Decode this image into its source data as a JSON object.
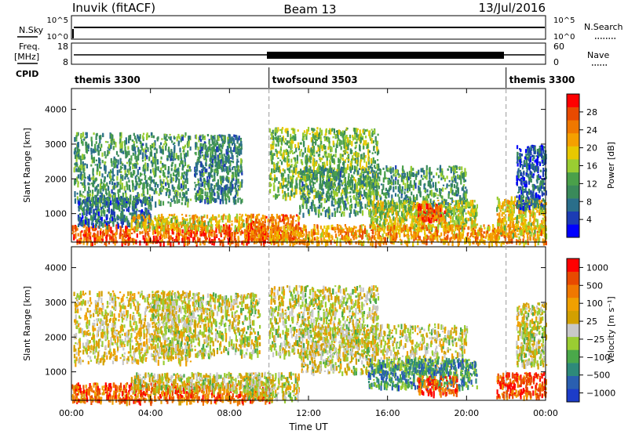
{
  "header": {
    "site": "Inuvik (fitACF)",
    "beam": "Beam 13",
    "date": "13/Jul/2016"
  },
  "strips": {
    "noise": {
      "left_label": "N.Sky",
      "left_ticks": [
        "10^5",
        "10^0"
      ],
      "right_label": "N.Search",
      "right_ticks": [
        "10^5",
        "10^0"
      ]
    },
    "freq": {
      "left_label": "Freq.",
      "left_unit": "[MHz]",
      "left_ticks": [
        "18",
        "8"
      ],
      "right_label": "Nave",
      "right_ticks": [
        "60",
        "0"
      ]
    },
    "cpid": {
      "label": "CPID",
      "programs": [
        {
          "name": "themis 3300",
          "start": 0,
          "end": 10
        },
        {
          "name": "twofsound 3503",
          "start": 10,
          "end": 22
        },
        {
          "name": "themis 3300",
          "start": 22,
          "end": 24
        }
      ]
    }
  },
  "chart_data": [
    {
      "type": "heatmap",
      "name": "power-panel",
      "xlabel": "",
      "ylabel": "Slant Range [km]",
      "xlim": [
        0,
        24
      ],
      "ylim": [
        180,
        4600
      ],
      "yticks": [
        "1000",
        "2000",
        "3000",
        "4000"
      ],
      "colorbar": {
        "label": "Power [dB]",
        "ticks": [
          "4",
          "8",
          "12",
          "16",
          "20",
          "24",
          "28"
        ],
        "colors": [
          "#0000ff",
          "#1c3cb4",
          "#2a6e8a",
          "#3a8a5a",
          "#4aa04a",
          "#9acd32",
          "#e8c800",
          "#f5a000",
          "#f07800",
          "#e84a00",
          "#ff0000"
        ]
      },
      "regions": [
        {
          "x": [
            0.0,
            10.0
          ],
          "y": [
            180,
            700
          ],
          "level": 0.82
        },
        {
          "x": [
            0.1,
            6.0
          ],
          "y": [
            1300,
            3350
          ],
          "level": 0.35
        },
        {
          "x": [
            6.2,
            8.6
          ],
          "y": [
            1400,
            3300
          ],
          "level": 0.3
        },
        {
          "x": [
            0.3,
            4.0
          ],
          "y": [
            700,
            1500
          ],
          "level": 0.25
        },
        {
          "x": [
            3.0,
            9.5
          ],
          "y": [
            600,
            1000
          ],
          "level": 0.6
        },
        {
          "x": [
            8.8,
            11.5
          ],
          "y": [
            250,
            1000
          ],
          "level": 0.8
        },
        {
          "x": [
            10.0,
            15.5
          ],
          "y": [
            1500,
            3500
          ],
          "level": 0.45
        },
        {
          "x": [
            11.5,
            20.0
          ],
          "y": [
            1000,
            2400
          ],
          "level": 0.35
        },
        {
          "x": [
            15.0,
            20.5
          ],
          "y": [
            600,
            1400
          ],
          "level": 0.55
        },
        {
          "x": [
            17.5,
            19.0
          ],
          "y": [
            800,
            1300
          ],
          "level": 0.85
        },
        {
          "x": [
            10.0,
            24.0
          ],
          "y": [
            180,
            700
          ],
          "level": 0.7
        },
        {
          "x": [
            21.5,
            24.0
          ],
          "y": [
            400,
            1500
          ],
          "level": 0.6
        },
        {
          "x": [
            22.5,
            24.0
          ],
          "y": [
            1200,
            3000
          ],
          "level": 0.2
        }
      ]
    },
    {
      "type": "heatmap",
      "name": "velocity-panel",
      "xlabel": "Time UT",
      "ylabel": "Slant Range [km]",
      "xlim": [
        0,
        24
      ],
      "ylim": [
        180,
        4600
      ],
      "xticks": [
        "00:00",
        "04:00",
        "08:00",
        "12:00",
        "16:00",
        "20:00",
        "00:00"
      ],
      "yticks": [
        "1000",
        "2000",
        "3000",
        "4000"
      ],
      "colorbar": {
        "label": "Velocity [m s⁻¹]",
        "ticks": [
          "1000",
          "500",
          "100",
          "25",
          "−25",
          "−100",
          "−500",
          "−1000"
        ],
        "colors": [
          "#1c3cc8",
          "#2a5fb0",
          "#2e8a7a",
          "#4aa84a",
          "#9acd32",
          "#c8c8c8",
          "#d2a000",
          "#f0a000",
          "#f07800",
          "#e84a00",
          "#ff0000"
        ]
      },
      "regions": [
        {
          "x": [
            0.0,
            10.0
          ],
          "y": [
            180,
            700
          ],
          "level": 0.8
        },
        {
          "x": [
            0.1,
            6.0
          ],
          "y": [
            1300,
            3350
          ],
          "level": 0.55
        },
        {
          "x": [
            4.0,
            9.5
          ],
          "y": [
            1500,
            3300
          ],
          "level": 0.5
        },
        {
          "x": [
            3.0,
            9.5
          ],
          "y": [
            500,
            1000
          ],
          "level": 0.5
        },
        {
          "x": [
            8.8,
            11.5
          ],
          "y": [
            250,
            1000
          ],
          "level": 0.5
        },
        {
          "x": [
            10.0,
            15.5
          ],
          "y": [
            1500,
            3500
          ],
          "level": 0.5
        },
        {
          "x": [
            11.5,
            20.0
          ],
          "y": [
            1000,
            2400
          ],
          "level": 0.5
        },
        {
          "x": [
            15.0,
            20.5
          ],
          "y": [
            600,
            1400
          ],
          "level": 0.25
        },
        {
          "x": [
            17.5,
            19.5
          ],
          "y": [
            400,
            900
          ],
          "level": 0.85
        },
        {
          "x": [
            21.5,
            24.0
          ],
          "y": [
            300,
            1000
          ],
          "level": 0.85
        },
        {
          "x": [
            22.5,
            24.0
          ],
          "y": [
            1200,
            3000
          ],
          "level": 0.5
        }
      ]
    }
  ]
}
